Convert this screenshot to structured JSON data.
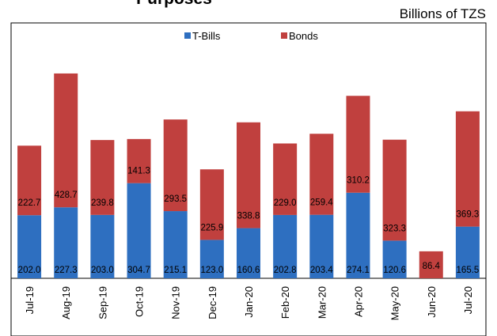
{
  "chart_data": {
    "type": "bar",
    "stacked": true,
    "title": "Purposes",
    "units_label": "Billions of TZS",
    "categories": [
      "Jul-19",
      "Aug-19",
      "Sep-19",
      "Oct-19",
      "Nov-19",
      "Dec-19",
      "Jan-20",
      "Feb-20",
      "Mar-20",
      "Apr-20",
      "May-20",
      "Jun-20",
      "Jul-20"
    ],
    "series": [
      {
        "name": "T-Bills",
        "color": "#2E6FC0",
        "values": [
          202.0,
          227.3,
          203.0,
          304.7,
          215.1,
          123.0,
          160.6,
          202.8,
          203.4,
          274.1,
          120.6,
          0,
          165.5
        ]
      },
      {
        "name": "Bonds",
        "color": "#C0403E",
        "values": [
          222.7,
          428.7,
          239.8,
          141.3,
          293.5,
          225.9,
          338.8,
          229.0,
          259.4,
          310.2,
          323.3,
          86.4,
          369.3
        ]
      }
    ],
    "ylim": [
      0,
      790
    ],
    "grid": false,
    "legend": "top-center",
    "tick_label_rotation": -90
  }
}
